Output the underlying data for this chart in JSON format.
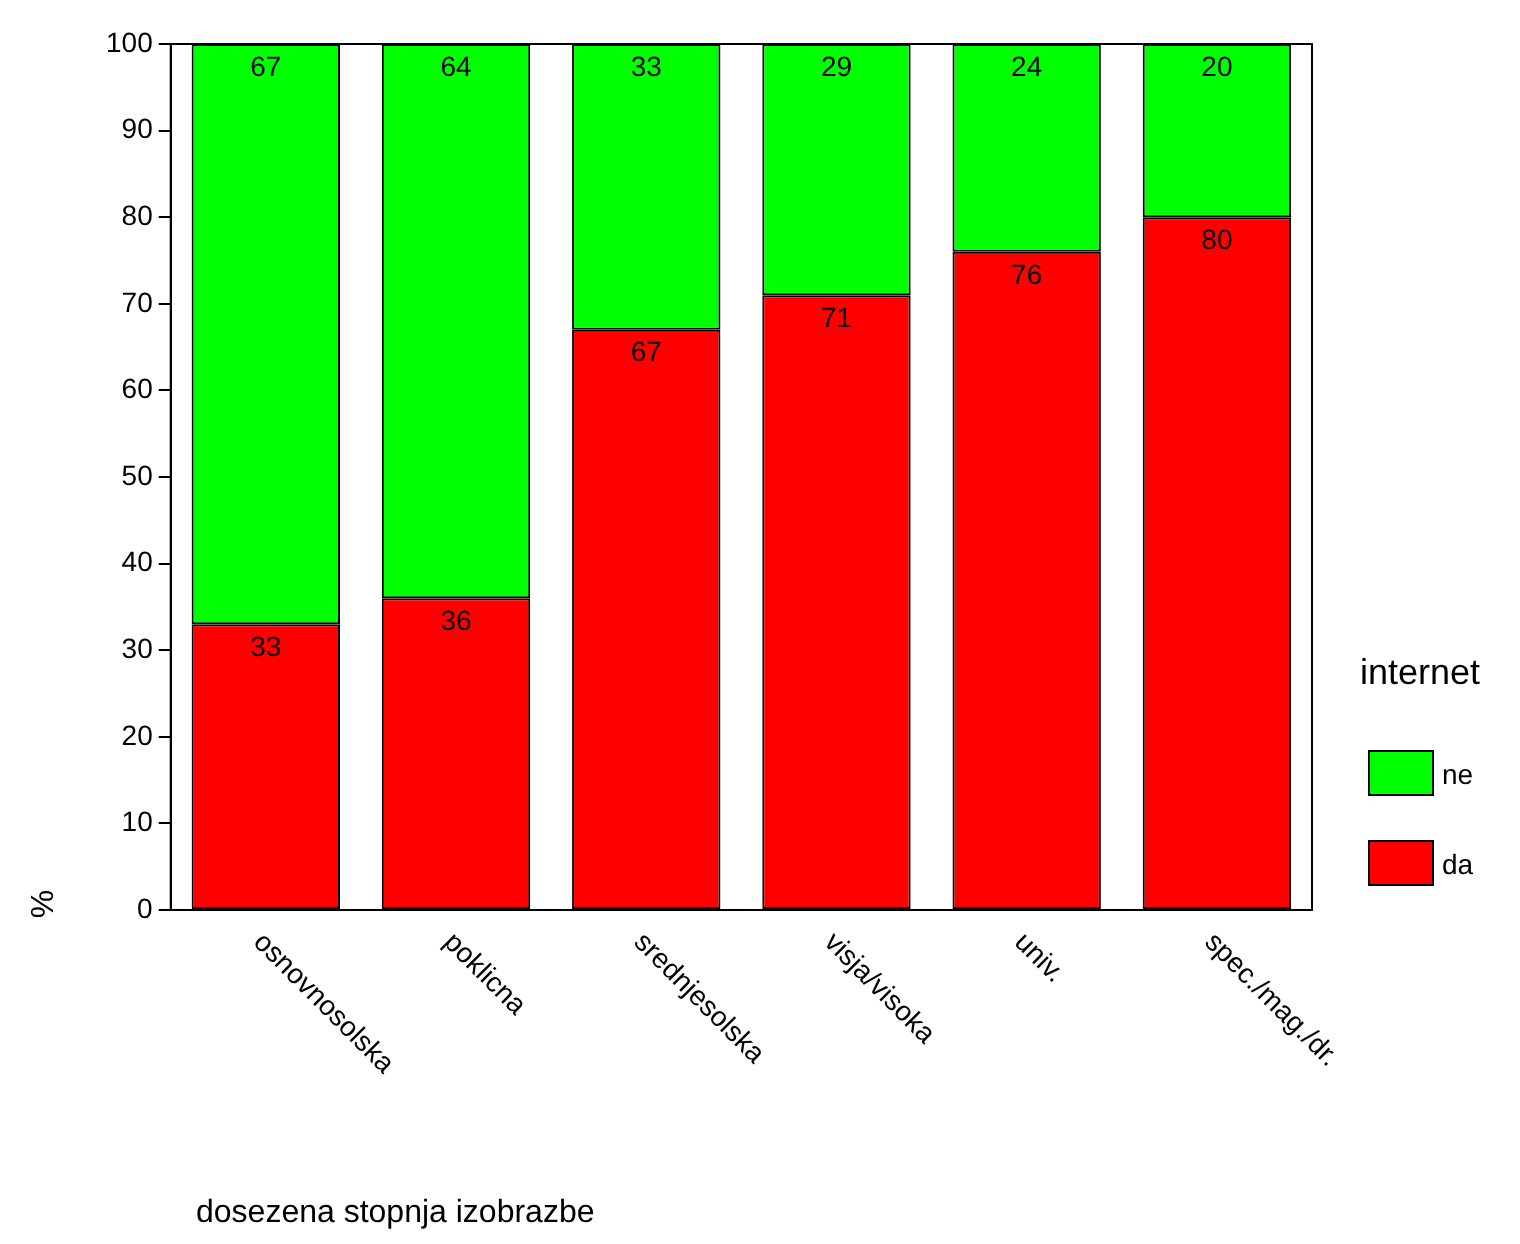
{
  "chart_data": {
    "type": "bar",
    "stacked": true,
    "xlabel": "dosezena stopnja izobrazbe",
    "ylabel": "%",
    "legend_title": "internet",
    "legend": "right",
    "grid": false,
    "data_labels": true,
    "categories": [
      "osnovnosolska",
      "poklicna",
      "srednjesolska",
      "visja/visoka",
      "univ.",
      "spec./mag./dr."
    ],
    "ylim": [
      0,
      100
    ],
    "yticks": [
      0,
      10,
      20,
      30,
      40,
      50,
      60,
      70,
      80,
      90,
      100
    ],
    "series": [
      {
        "name": "da",
        "color": "#ff0000",
        "values": [
          33,
          36,
          67,
          71,
          76,
          80
        ]
      },
      {
        "name": "ne",
        "color": "#00ff00",
        "values": [
          67,
          64,
          33,
          29,
          24,
          20
        ]
      }
    ]
  }
}
